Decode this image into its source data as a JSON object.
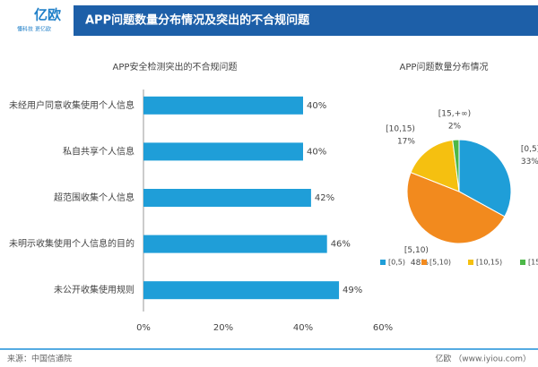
{
  "header": {
    "logo": "亿欧",
    "slogan": "懂科技 更亿欧",
    "title": "APP问题数量分布情况及突出的不合规问题"
  },
  "chart_data": [
    {
      "type": "bar",
      "orientation": "horizontal",
      "title": "APP安全检测突出的不合规问题",
      "categories": [
        "未经用户同意收集使用个人信息",
        "私自共享个人信息",
        "超范围收集个人信息",
        "未明示收集使用个人信息的目的",
        "未公开收集使用规则"
      ],
      "values": [
        40,
        40,
        42,
        46,
        49
      ],
      "value_labels": [
        "40%",
        "40%",
        "42%",
        "46%",
        "49%"
      ],
      "color": "#1f9ed8",
      "xlim": [
        0,
        60
      ],
      "xticks": [
        {
          "value": 0,
          "label": "0%"
        },
        {
          "value": 20,
          "label": "20%"
        },
        {
          "value": 40,
          "label": "40%"
        },
        {
          "value": 60,
          "label": "60%"
        }
      ]
    },
    {
      "type": "pie",
      "title": "APP问题数量分布情况",
      "categories": [
        "[0,5)",
        "[5,10)",
        "[10,15)",
        "[15,+∞)"
      ],
      "values": [
        33,
        48,
        17,
        2
      ],
      "value_labels": [
        "33%",
        "48%",
        "17%",
        "2%"
      ],
      "colors": [
        "#1f9ed8",
        "#f28a1e",
        "#f5c010",
        "#4cb848"
      ]
    }
  ],
  "footer": {
    "source": "来源：中国信通院",
    "site": "亿欧 （www.iyiou.com）"
  }
}
